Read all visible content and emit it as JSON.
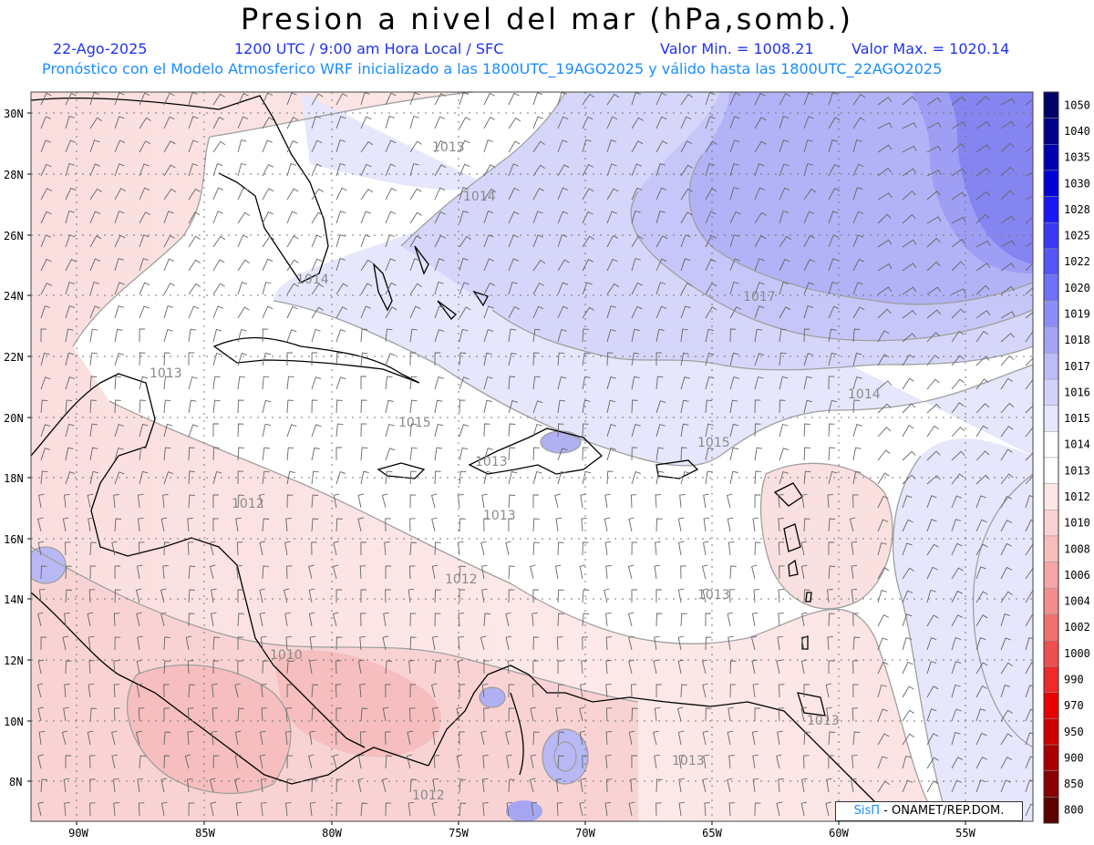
{
  "header": {
    "title": "Presion a nivel del mar (hPa,somb.)",
    "date": "22-Ago-2025",
    "time": "1200 UTC / 9:00 am Hora Local / SFC",
    "min": "Valor Min. = 1008.21",
    "max": "Valor Max. = 1020.14",
    "model": "Pronóstico con el Modelo Atmosferico WRF inicializado a las 1800UTC_19AGO2025 y válido hasta las  1800UTC_22AGO2025"
  },
  "axes": {
    "lon_labels": [
      "90W",
      "85W",
      "80W",
      "75W",
      "70W",
      "65W",
      "60W",
      "55W"
    ],
    "lat_labels": [
      "30N",
      "28N",
      "26N",
      "24N",
      "22N",
      "20N",
      "18N",
      "16N",
      "14N",
      "12N",
      "10N",
      "8N"
    ]
  },
  "contour_labels": [
    "1013",
    "1014",
    "1014",
    "1017",
    "1013",
    "1014",
    "1015",
    "1015",
    "1013",
    "1012",
    "1013",
    "1012",
    "1013",
    "1010",
    "1013",
    "1013",
    "1012"
  ],
  "legend": {
    "levels": [
      "1050",
      "1040",
      "1035",
      "1030",
      "1028",
      "1025",
      "1022",
      "1020",
      "1019",
      "1018",
      "1017",
      "1016",
      "1015",
      "1014",
      "1013",
      "1012",
      "1010",
      "1008",
      "1006",
      "1004",
      "1002",
      "1000",
      "990",
      "970",
      "950",
      "900",
      "850",
      "800"
    ],
    "colors": [
      "#000066",
      "#00008a",
      "#0000b0",
      "#0000d6",
      "#1818f5",
      "#3a3af7",
      "#5555f8",
      "#7070f8",
      "#8d8df8",
      "#a4a4f7",
      "#bcbcf8",
      "#d2d2fa",
      "#e6e6fc",
      "#ffffff",
      "#ffffff",
      "#fde6e6",
      "#fbd2d2",
      "#f8bdbd",
      "#f6a6a6",
      "#f38d8d",
      "#f07070",
      "#ee5050",
      "#ee2a2a",
      "#e80000",
      "#cc0000",
      "#aa0000",
      "#880000",
      "#5c0000"
    ]
  },
  "credit": {
    "brand": "SisΠ",
    "text": "- ONAMET/REP.DOM."
  }
}
